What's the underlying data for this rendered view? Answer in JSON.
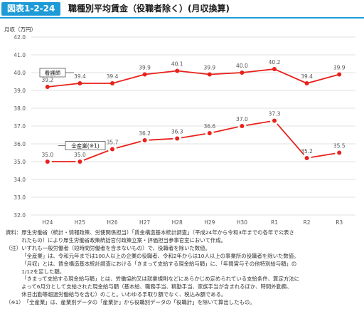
{
  "header": {
    "badge": "図表1-2-24",
    "title": "職種別平均賃金（役職者除く）(月収換算)"
  },
  "chart_data": {
    "type": "line",
    "ylabel": "月収（万円）",
    "ylim": [
      32.0,
      42.0
    ],
    "ytick_step": 1.0,
    "grid": true,
    "categories": [
      "H24",
      "H25",
      "H26",
      "H27",
      "H28",
      "H29",
      "H30",
      "R1",
      "R2",
      "R3"
    ],
    "series": [
      {
        "name": "看護師",
        "style": "solid",
        "values": [
          39.2,
          39.4,
          39.4,
          39.9,
          40.1,
          39.9,
          40.0,
          40.2,
          39.4,
          39.9
        ]
      },
      {
        "name": "全産業",
        "name_note": "(※1)",
        "style": "dashed-segments",
        "values": [
          35.0,
          35.0,
          35.7,
          36.2,
          36.3,
          36.6,
          37.0,
          37.3,
          35.2,
          35.5
        ]
      }
    ],
    "colors": {
      "line": "#e8211a",
      "grid": "#d8d8d8",
      "axis_text": "#555555"
    }
  },
  "notes": [
    {
      "head": "資料：",
      "lines": [
        "厚生労働省（統計・情報政策、労使関係担当）「賃金構造基本統計調査」（平成24年から令和3年までの各年で公表さ",
        "れたもの）により厚生労働省政策統括官付政策立案・評価担当参事官室において作成。"
      ]
    },
    {
      "head": "（注）",
      "lines": [
        "いずれも一般労働者（短時間労働者を含まないもの）で、役職者を除いた数値。",
        "「全産業」は、令和元年までは100人以上の企業の役職者、令和2年からは10人以上の事業所の役職者を除いた数値。",
        "「月収」とは、賃金構造基本統計調査における「きまって支給する現金給与額」に、「年間賞与その他特別給与額」の",
        "1/12を足した額。",
        "「きまって支給する現金給与額」とは、労働協約又は就業規則などにあらかじめ定められている支給条件、算定方法に",
        "よって6月分として支給された現金給与額（基本給、職務手当、精勤手当、家族手当が含まれるほか、時間外勤務、",
        "休日出勤等超過労働給与を含む）のこと。いわゆる手取り額でなく、税込み額である。"
      ]
    },
    {
      "head": "（※1）",
      "lines": [
        "「全産業」は、産業別データの「産業計」から役職別データの「役職計」を除いて算出したもの。"
      ]
    }
  ]
}
